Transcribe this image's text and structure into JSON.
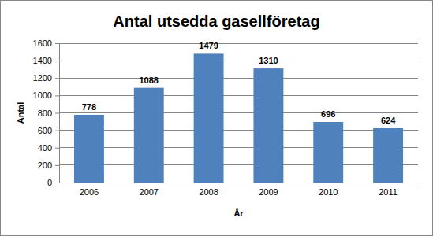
{
  "chart_data": {
    "type": "bar",
    "title": "Antal utsedda gasellföretag",
    "x_label": "År",
    "y_label": "Antal",
    "categories": [
      "2006",
      "2007",
      "2008",
      "2009",
      "2010",
      "2011"
    ],
    "values": [
      778,
      1088,
      1479,
      1310,
      696,
      624
    ],
    "color": "#4f81bd",
    "ylim": [
      0,
      1600
    ],
    "yticks": [
      0,
      200,
      400,
      600,
      800,
      1000,
      1200,
      1400,
      1600
    ],
    "grid": true,
    "data_labels": true
  }
}
